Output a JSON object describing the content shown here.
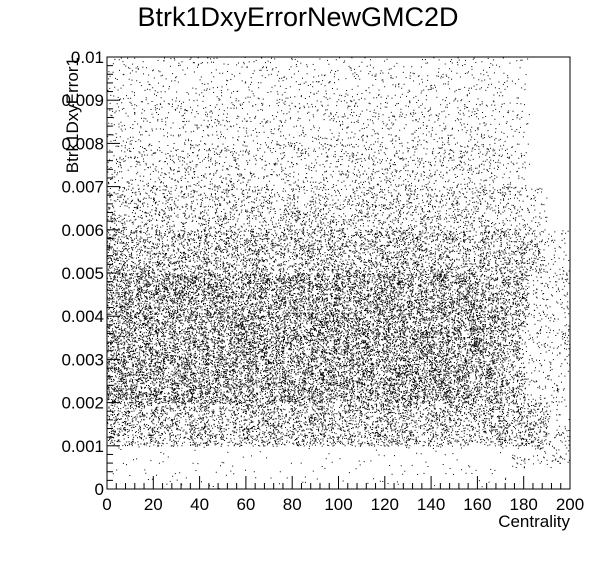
{
  "chart_data": {
    "type": "heatmap",
    "style": "scatter-density (ROOT TH2 scatter draw)",
    "title": "Btrk1DxyErrorNewGMC2D",
    "xlabel": "Centrality",
    "ylabel": "Btrk1DxyError1",
    "xlim": [
      0,
      200
    ],
    "ylim": [
      0,
      0.01
    ],
    "x_ticks": [
      0,
      20,
      40,
      60,
      80,
      100,
      120,
      140,
      160,
      180,
      200
    ],
    "x_tick_labels": [
      "0",
      "20",
      "40",
      "60",
      "80",
      "100",
      "120",
      "140",
      "160",
      "180",
      "200"
    ],
    "y_ticks": [
      0,
      0.001,
      0.002,
      0.003,
      0.004,
      0.005,
      0.006,
      0.007,
      0.008,
      0.009,
      0.01
    ],
    "y_tick_labels": [
      "0",
      "0.001",
      "0.002",
      "0.003",
      "0.004",
      "0.005",
      "0.006",
      "0.007",
      "0.008",
      "0.009",
      "0.01"
    ],
    "y_bands": [
      {
        "y_range": [
          0.0,
          0.001
        ],
        "density": 0.02,
        "x_max": 185
      },
      {
        "y_range": [
          0.001,
          0.002
        ],
        "density": 0.55,
        "x_max": 190
      },
      {
        "y_range": [
          0.002,
          0.003
        ],
        "density": 0.95,
        "x_max": 180
      },
      {
        "y_range": [
          0.003,
          0.004
        ],
        "density": 0.97,
        "x_max": 180
      },
      {
        "y_range": [
          0.004,
          0.005
        ],
        "density": 0.92,
        "x_max": 182
      },
      {
        "y_range": [
          0.005,
          0.006
        ],
        "density": 0.55,
        "x_max": 188
      },
      {
        "y_range": [
          0.006,
          0.007
        ],
        "density": 0.3,
        "x_max": 190
      },
      {
        "y_range": [
          0.007,
          0.008
        ],
        "density": 0.2,
        "x_max": 182
      },
      {
        "y_range": [
          0.008,
          0.009
        ],
        "density": 0.13,
        "x_max": 182
      },
      {
        "y_range": [
          0.009,
          0.01
        ],
        "density": 0.09,
        "x_max": 182
      }
    ],
    "grid": false,
    "legend": "none",
    "marker_color": "#000000"
  }
}
